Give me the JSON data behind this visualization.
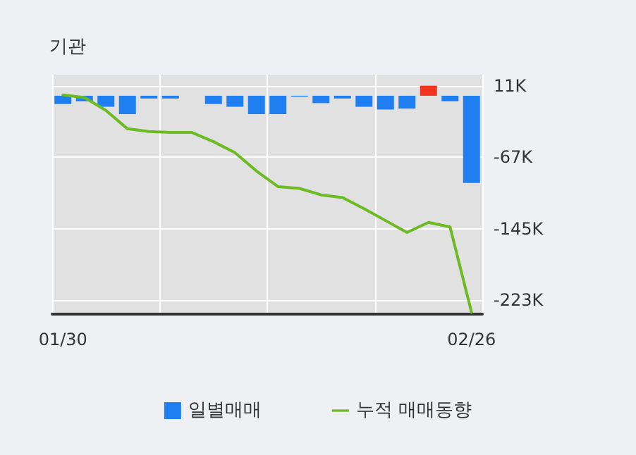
{
  "chart_data": {
    "type": "bar",
    "title": "기관",
    "categories": [
      "01/30",
      null,
      null,
      null,
      null,
      null,
      null,
      null,
      null,
      null,
      null,
      null,
      null,
      null,
      null,
      null,
      null,
      null,
      null,
      "02/26"
    ],
    "series": [
      {
        "name": "일별매매",
        "colors": [
          "#1f7ff0",
          "#1f7ff0",
          "#1f7ff0",
          "#1f7ff0",
          "#1f7ff0",
          "#1f7ff0",
          "#1f7ff0",
          "#1f7ff0",
          "#1f7ff0",
          "#1f7ff0",
          "#1f7ff0",
          "#1f7ff0",
          "#1f7ff0",
          "#1f7ff0",
          "#1f7ff0",
          "#1f7ff0",
          "#1f7ff0",
          "#f0341f",
          "#1f7ff0",
          "#1f7ff0"
        ],
        "values": [
          -9,
          -6,
          -12,
          -20,
          -3,
          -3,
          0,
          -9,
          -12,
          -20,
          -20,
          -1,
          -8,
          -3,
          -12,
          -15,
          -14,
          11,
          -6,
          -95
        ]
      },
      {
        "name": "누적 매매동향",
        "type": "line",
        "color": "#6cbb22",
        "values": [
          1,
          -2,
          -16,
          -36,
          -39,
          -40,
          -40,
          -50,
          -62,
          -82,
          -99,
          -101,
          -108,
          -111,
          -123,
          -136,
          -149,
          -138,
          -143,
          -236
        ]
      }
    ],
    "ylim": [
      -238,
      23
    ],
    "yticks": [
      {
        "value": 11,
        "label": "11K"
      },
      {
        "value": -67,
        "label": "-67K"
      },
      {
        "value": -145,
        "label": "-145K"
      },
      {
        "value": -223,
        "label": "-223K"
      }
    ],
    "grid": true,
    "legend": "bottom",
    "marker": "none",
    "line_style": "solid"
  }
}
